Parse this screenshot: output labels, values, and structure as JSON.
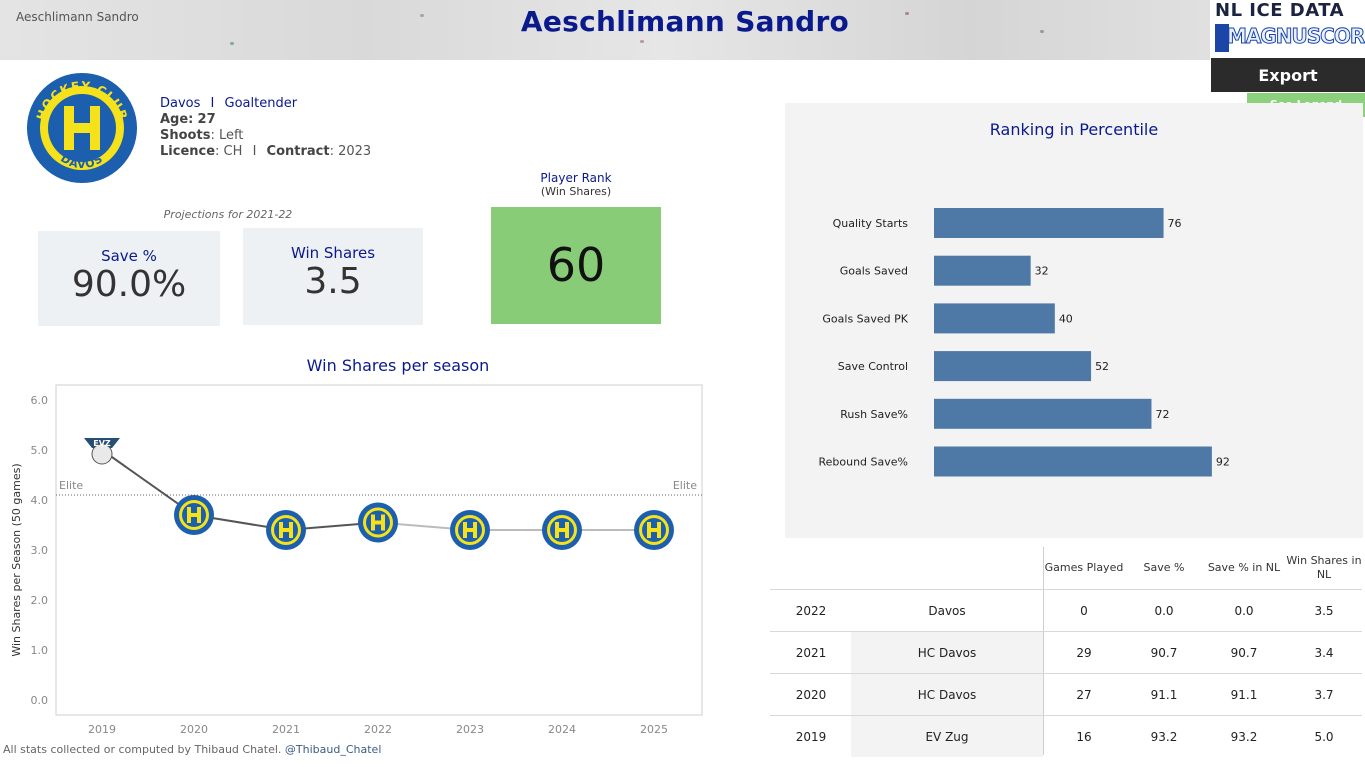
{
  "header": {
    "small_name": "Aeschlimann Sandro",
    "title": "Aeschlimann Sandro",
    "brand_top": "NL ICE DATA",
    "brand_bottom": "MAGNUSCORSI"
  },
  "buttons": {
    "export_label": "Export",
    "legend_label": "See Legend"
  },
  "player": {
    "team": "Davos",
    "separator": "I",
    "position": "Goaltender",
    "age_label": "Age:",
    "age": "27",
    "shoots_label": "Shoots",
    "shoots": ": Left",
    "licence_label": "Licence",
    "licence": ": CH",
    "contract_label": "Contract",
    "contract": ": 2023",
    "logo_text_top": "HOCKEY CLUB",
    "logo_text_bottom": "DAVOS"
  },
  "projections": {
    "label": "Projections for 2021-22",
    "save_pct_label": "Save %",
    "save_pct_value": "90.0%",
    "win_shares_label": "Win Shares",
    "win_shares_value": "3.5"
  },
  "player_rank": {
    "label": "Player Rank",
    "sub_label": "(Win Shares)",
    "value": "60"
  },
  "percentile_chart": {
    "title": "Ranking in Percentile",
    "bar_color": "#4e79a7",
    "chart_data": {
      "type": "bar",
      "orientation": "horizontal",
      "categories": [
        "Quality Starts",
        "Goals Saved",
        "Goals Saved PK",
        "Save Control",
        "Rush Save%",
        "Rebound Save%"
      ],
      "values": [
        76,
        32,
        40,
        52,
        72,
        92
      ],
      "xlim": [
        0,
        100
      ]
    }
  },
  "win_shares_chart": {
    "title": "Win Shares per season",
    "chart_data": {
      "type": "line",
      "x": [
        "2019",
        "2020",
        "2021",
        "2022",
        "2023",
        "2024",
        "2025"
      ],
      "values": [
        5.0,
        3.7,
        3.4,
        3.55,
        3.4,
        3.4,
        3.4
      ],
      "team_logos": [
        "EVZ",
        "HCD",
        "HCD",
        "HCD",
        "HCD",
        "HCD",
        "HCD"
      ],
      "ylabel": "Win Shares per Season (50 games)",
      "ylim": [
        -0.3,
        6.3
      ],
      "yticks": [
        "0.0",
        "1.0",
        "2.0",
        "3.0",
        "4.0",
        "5.0",
        "6.0"
      ],
      "reference_line": {
        "label_left": "Elite",
        "label_right": "Elite",
        "value": 4.1
      }
    }
  },
  "stats_table": {
    "headers": [
      "Games Played",
      "Save %",
      "Save % in NL",
      "Win Shares in NL"
    ],
    "rows": [
      {
        "season": "2022",
        "team": "Davos",
        "gp": "0",
        "sv": "0.0",
        "sv_nl": "0.0",
        "ws_nl": "3.5"
      },
      {
        "season": "2021",
        "team": "HC Davos",
        "gp": "29",
        "sv": "90.7",
        "sv_nl": "90.7",
        "ws_nl": "3.4"
      },
      {
        "season": "2020",
        "team": "HC Davos",
        "gp": "27",
        "sv": "91.1",
        "sv_nl": "91.1",
        "ws_nl": "3.7"
      },
      {
        "season": "2019",
        "team": "EV Zug",
        "gp": "16",
        "sv": "93.2",
        "sv_nl": "93.2",
        "ws_nl": "5.0"
      }
    ]
  },
  "footer": {
    "text": "All stats collected or computed by Thibaud Chatel.",
    "handle": "@Thibaud_Chatel"
  },
  "colors": {
    "title_blue": "#0a1a8c",
    "rank_green": "#89cc78",
    "davos_yellow": "#f5e21b",
    "davos_blue": "#1c5fae"
  }
}
